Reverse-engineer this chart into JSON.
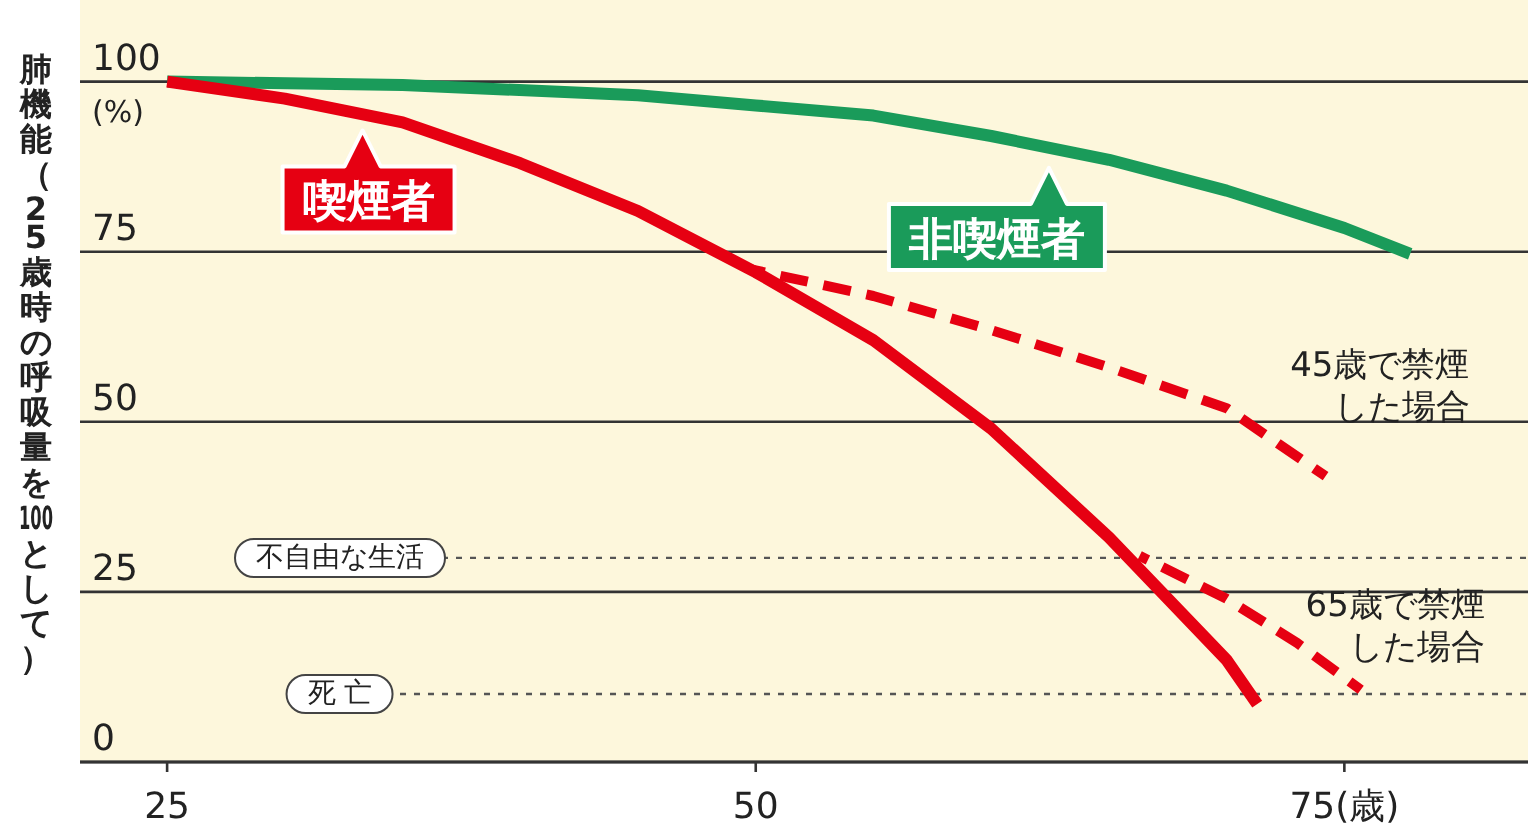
{
  "chart_data": {
    "type": "line",
    "ylabel": "肺機能（25歳時の呼吸量を100として）",
    "xlim": [
      21.3,
      82.8
    ],
    "ylim": [
      0,
      112
    ],
    "xticks": [
      25,
      50,
      {
        "value": 75,
        "label": "75(歳)"
      }
    ],
    "yticks": [
      0,
      25,
      50,
      75,
      100
    ],
    "grid": "y",
    "legend": false,
    "marker": "none",
    "annotations": [
      "(%)"
    ],
    "ref_lines": [
      {
        "axis": "y",
        "value": 30,
        "label": "不自由な生活",
        "color": "#555555",
        "line_style": "dotted"
      },
      {
        "axis": "y",
        "value": 10,
        "label": "死 亡",
        "color": "#555555",
        "line_style": "dotted"
      }
    ],
    "series": [
      {
        "name": "非喫煙者",
        "color": "#1a9b5a",
        "line_style": "solid",
        "x": [
          25,
          35,
          45,
          50,
          55,
          60,
          65,
          70,
          75,
          77.8
        ],
        "values": [
          100,
          99.5,
          98,
          96.5,
          95,
          92,
          88.5,
          84,
          78.5,
          74.7
        ]
      },
      {
        "name": "喫煙者",
        "color": "#e60012",
        "line_style": "solid",
        "x": [
          25,
          30,
          35,
          40,
          45,
          50,
          55,
          60,
          65,
          70,
          71.3
        ],
        "values": [
          100,
          97.5,
          94,
          88,
          81,
          72,
          62,
          49,
          33,
          15,
          8.5
        ]
      },
      {
        "name": "45歳で禁煙した場合",
        "color": "#e60012",
        "line_style": "dashed",
        "x": [
          49.8,
          55,
          60,
          65,
          70,
          74.2
        ],
        "values": [
          72.4,
          68.5,
          63.5,
          58,
          52,
          42
        ]
      },
      {
        "name": "65歳で禁煙した場合",
        "color": "#e60012",
        "line_style": "dashed",
        "x": [
          66.3,
          70,
          73,
          75.7
        ],
        "values": [
          30.3,
          24,
          17.5,
          10.6
        ]
      }
    ]
  }
}
